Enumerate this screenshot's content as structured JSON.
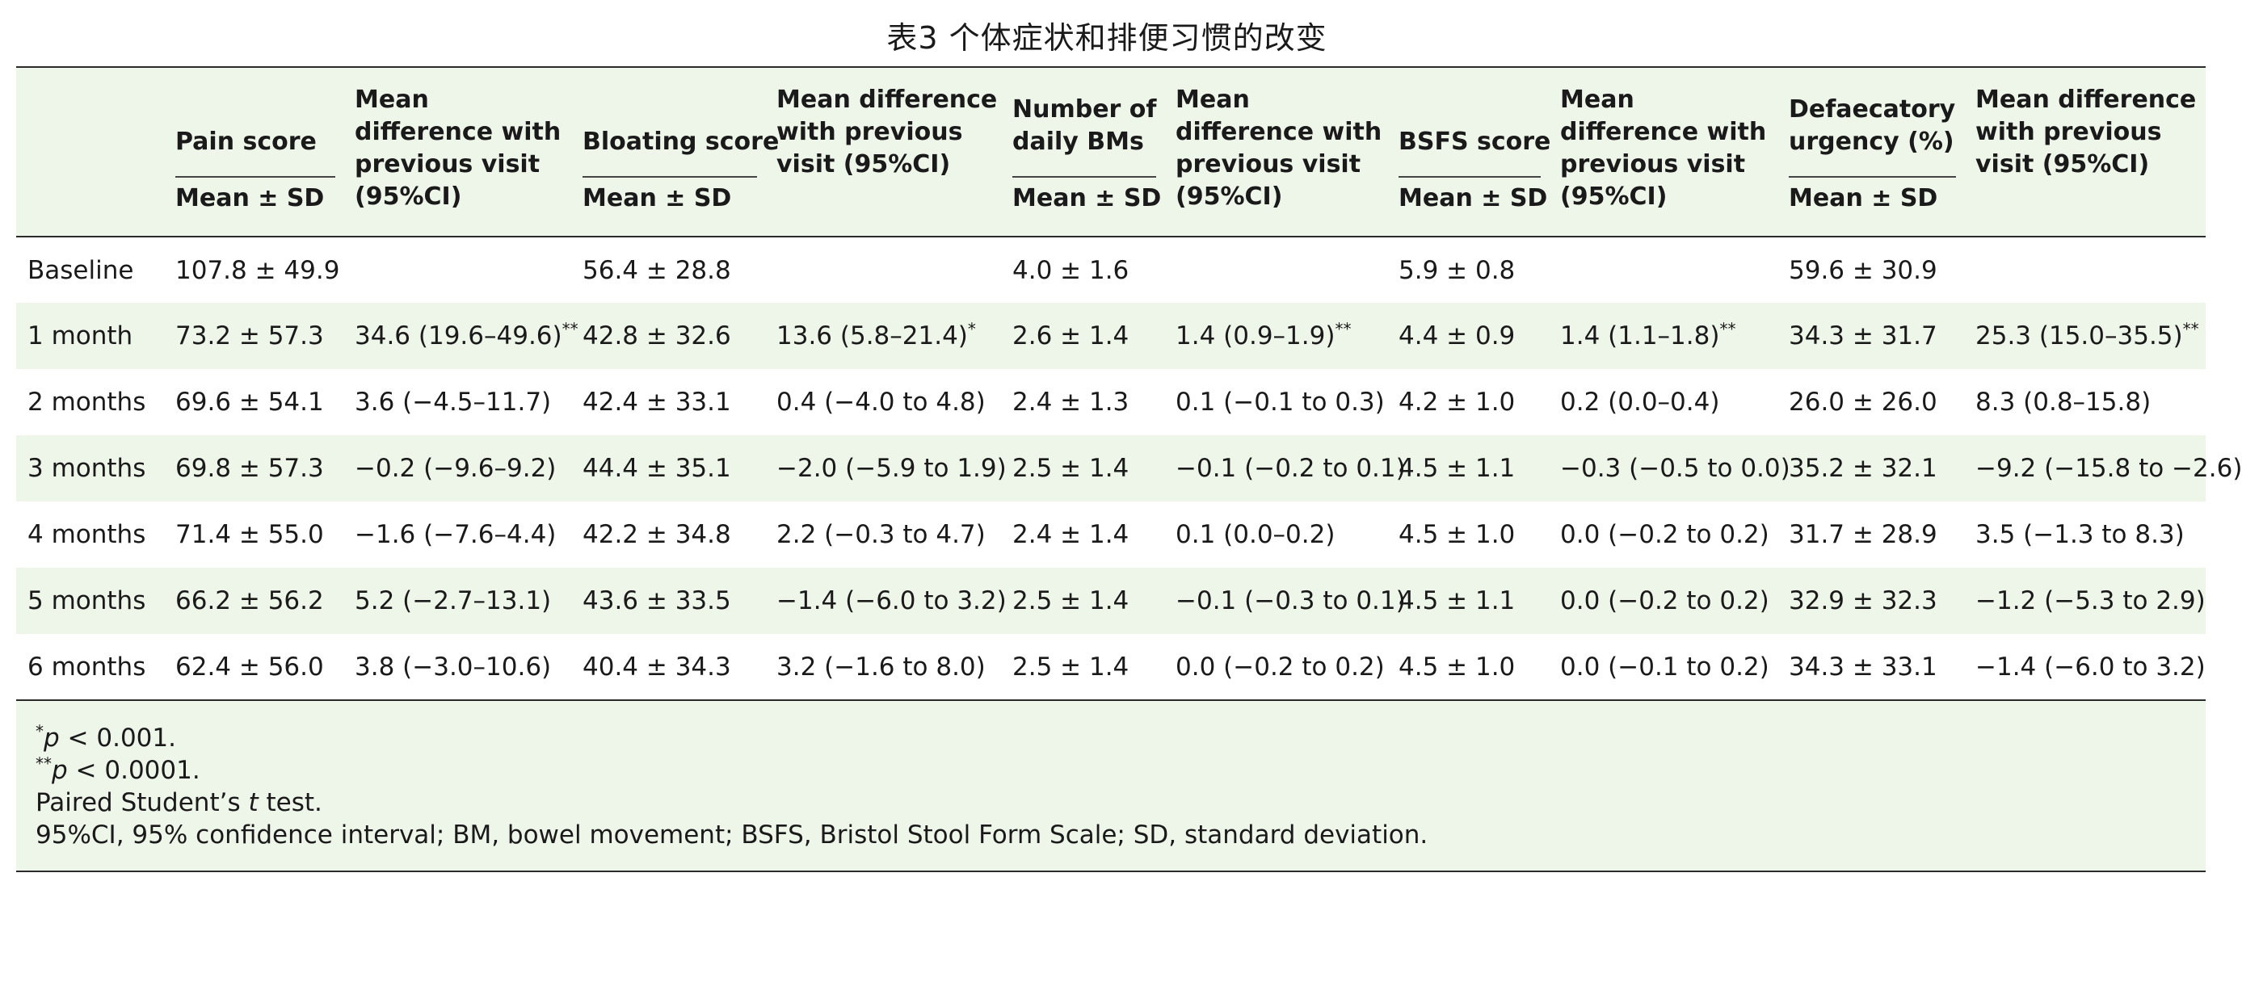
{
  "title": "表3 个体症状和排便习惯的改变",
  "headers": {
    "pain": "Pain score",
    "bloating": "Bloating score",
    "bms": "Number of daily BMs",
    "bsfs": "BSFS score",
    "urgency": "Defaecatory urgency (%)",
    "diff": "Mean difference with previous visit (95%CI)",
    "mean_sd": "Mean ± SD"
  },
  "rows": [
    {
      "label": "Baseline",
      "cells": [
        "107.8 ± 49.9",
        "",
        "56.4 ± 28.8",
        "",
        "4.0 ± 1.6",
        "",
        "5.9 ± 0.8",
        "",
        "59.6 ± 30.9",
        ""
      ],
      "sups": [
        "",
        "",
        "",
        "",
        "",
        "",
        "",
        "",
        "",
        ""
      ]
    },
    {
      "label": "1 month",
      "cells": [
        "73.2 ± 57.3",
        "34.6 (19.6–49.6)",
        "42.8 ± 32.6",
        "13.6 (5.8–21.4)",
        "2.6 ± 1.4",
        "1.4 (0.9–1.9)",
        "4.4 ± 0.9",
        "1.4 (1.1–1.8)",
        "34.3 ± 31.7",
        "25.3 (15.0–35.5)"
      ],
      "sups": [
        "",
        "**",
        "",
        "*",
        "",
        "**",
        "",
        "**",
        "",
        "**"
      ]
    },
    {
      "label": "2 months",
      "cells": [
        "69.6 ± 54.1",
        "3.6 (−4.5–11.7)",
        "42.4 ± 33.1",
        "0.4 (−4.0 to 4.8)",
        "2.4 ± 1.3",
        "0.1 (−0.1 to 0.3)",
        "4.2 ± 1.0",
        "0.2 (0.0–0.4)",
        "26.0 ± 26.0",
        "8.3 (0.8–15.8)"
      ],
      "sups": [
        "",
        "",
        "",
        "",
        "",
        "",
        "",
        "",
        "",
        ""
      ]
    },
    {
      "label": "3 months",
      "cells": [
        "69.8 ± 57.3",
        "−0.2 (−9.6–9.2)",
        "44.4 ± 35.1",
        "−2.0 (−5.9 to 1.9)",
        "2.5 ± 1.4",
        "−0.1 (−0.2 to 0.1)",
        "4.5 ± 1.1",
        "−0.3 (−0.5 to 0.0)",
        "35.2 ± 32.1",
        "−9.2 (−15.8 to −2.6)"
      ],
      "sups": [
        "",
        "",
        "",
        "",
        "",
        "",
        "",
        "",
        "",
        ""
      ]
    },
    {
      "label": "4 months",
      "cells": [
        "71.4 ± 55.0",
        "−1.6 (−7.6–4.4)",
        "42.2 ± 34.8",
        "2.2 (−0.3 to 4.7)",
        "2.4 ± 1.4",
        "0.1 (0.0–0.2)",
        "4.5 ± 1.0",
        "0.0 (−0.2 to 0.2)",
        "31.7 ± 28.9",
        "3.5 (−1.3 to 8.3)"
      ],
      "sups": [
        "",
        "",
        "",
        "",
        "",
        "",
        "",
        "",
        "",
        ""
      ]
    },
    {
      "label": "5 months",
      "cells": [
        "66.2 ± 56.2",
        "5.2 (−2.7–13.1)",
        "43.6 ± 33.5",
        "−1.4 (−6.0 to 3.2)",
        "2.5 ± 1.4",
        "−0.1 (−0.3 to 0.1)",
        "4.5 ± 1.1",
        "0.0 (−0.2 to 0.2)",
        "32.9 ± 32.3",
        "−1.2 (−5.3 to 2.9)"
      ],
      "sups": [
        "",
        "",
        "",
        "",
        "",
        "",
        "",
        "",
        "",
        ""
      ]
    },
    {
      "label": "6 months",
      "cells": [
        "62.4 ± 56.0",
        "3.8 (−3.0–10.6)",
        "40.4 ± 34.3",
        "3.2 (−1.6 to 8.0)",
        "2.5 ± 1.4",
        "0.0 (−0.2 to 0.2)",
        "4.5 ± 1.0",
        "0.0 (−0.1 to 0.2)",
        "34.3 ± 33.1",
        "−1.4 (−6.0 to 3.2)"
      ],
      "sups": [
        "",
        "",
        "",
        "",
        "",
        "",
        "",
        "",
        "",
        ""
      ]
    }
  ],
  "footnotes": {
    "f1_mark": "*",
    "f1_p": "p",
    "f1_text": " < 0.001.",
    "f2_mark": "**",
    "f2_p": "p",
    "f2_text": " < 0.0001.",
    "f3_pre": "Paired Student’s ",
    "f3_t": "t",
    "f3_post": " test.",
    "f4": "95%CI, 95% confidence interval; BM, bowel movement; BSFS, Bristol Stool Form Scale; SD, standard deviation."
  },
  "colors": {
    "shade": "#eef5e9",
    "rule": "#2b2b2b"
  }
}
